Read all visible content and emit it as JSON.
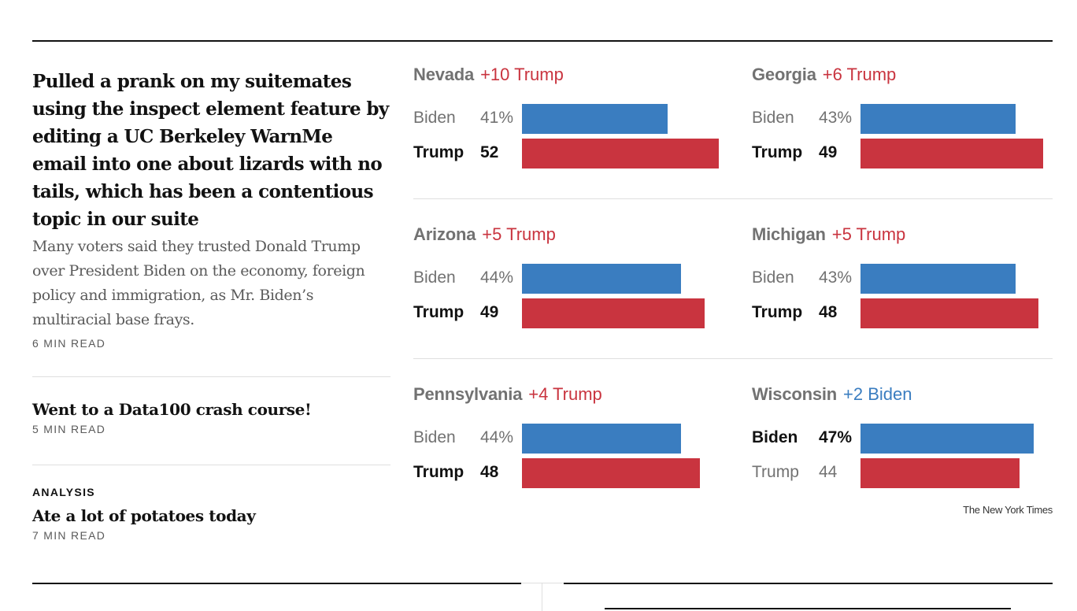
{
  "stories": {
    "lead": {
      "headline": "Pulled a prank on my suitemates using the inspect element feature by editing a UC Berkeley WarnMe email into one about lizards with no tails, which has been a contentious topic in our suite",
      "summary": "Many voters said they trusted Donald Trump over President Biden on the economy, foreign policy and immigration, as Mr. Biden’s multiracial base frays.",
      "read_time": "6 MIN READ"
    },
    "second": {
      "headline": "Went to a Data100 crash course!",
      "read_time": "5 MIN READ"
    },
    "third": {
      "kicker": "ANALYSIS",
      "headline": "Ate a lot of potatoes today",
      "read_time": "7 MIN READ"
    }
  },
  "colors": {
    "biden": "#3a7dc0",
    "trump": "#c9343f"
  },
  "credit": "The New York Times",
  "chart_data": {
    "type": "bar",
    "title": "",
    "xlim": [
      0,
      55
    ],
    "states": [
      {
        "name": "Nevada",
        "margin_text": "+10 Trump",
        "leader": "trump",
        "rows": [
          {
            "candidate": "Biden",
            "value_text": "41%",
            "value": 41,
            "party": "biden"
          },
          {
            "candidate": "Trump",
            "value_text": "52",
            "value": 52,
            "party": "trump"
          }
        ]
      },
      {
        "name": "Georgia",
        "margin_text": "+6 Trump",
        "leader": "trump",
        "rows": [
          {
            "candidate": "Biden",
            "value_text": "43%",
            "value": 43,
            "party": "biden"
          },
          {
            "candidate": "Trump",
            "value_text": "49",
            "value": 49,
            "party": "trump"
          }
        ]
      },
      {
        "name": "Arizona",
        "margin_text": "+5 Trump",
        "leader": "trump",
        "rows": [
          {
            "candidate": "Biden",
            "value_text": "44%",
            "value": 44,
            "party": "biden"
          },
          {
            "candidate": "Trump",
            "value_text": "49",
            "value": 49,
            "party": "trump"
          }
        ]
      },
      {
        "name": "Michigan",
        "margin_text": "+5 Trump",
        "leader": "trump",
        "rows": [
          {
            "candidate": "Biden",
            "value_text": "43%",
            "value": 43,
            "party": "biden"
          },
          {
            "candidate": "Trump",
            "value_text": "48",
            "value": 48,
            "party": "trump"
          }
        ]
      },
      {
        "name": "Pennsylvania",
        "margin_text": "+4 Trump",
        "leader": "trump",
        "rows": [
          {
            "candidate": "Biden",
            "value_text": "44%",
            "value": 44,
            "party": "biden"
          },
          {
            "candidate": "Trump",
            "value_text": "48",
            "value": 48,
            "party": "trump"
          }
        ]
      },
      {
        "name": "Wisconsin",
        "margin_text": "+2 Biden",
        "leader": "biden",
        "rows": [
          {
            "candidate": "Biden",
            "value_text": "47%",
            "value": 47,
            "party": "biden"
          },
          {
            "candidate": "Trump",
            "value_text": "44",
            "value": 44,
            "party": "trump"
          }
        ]
      }
    ]
  }
}
